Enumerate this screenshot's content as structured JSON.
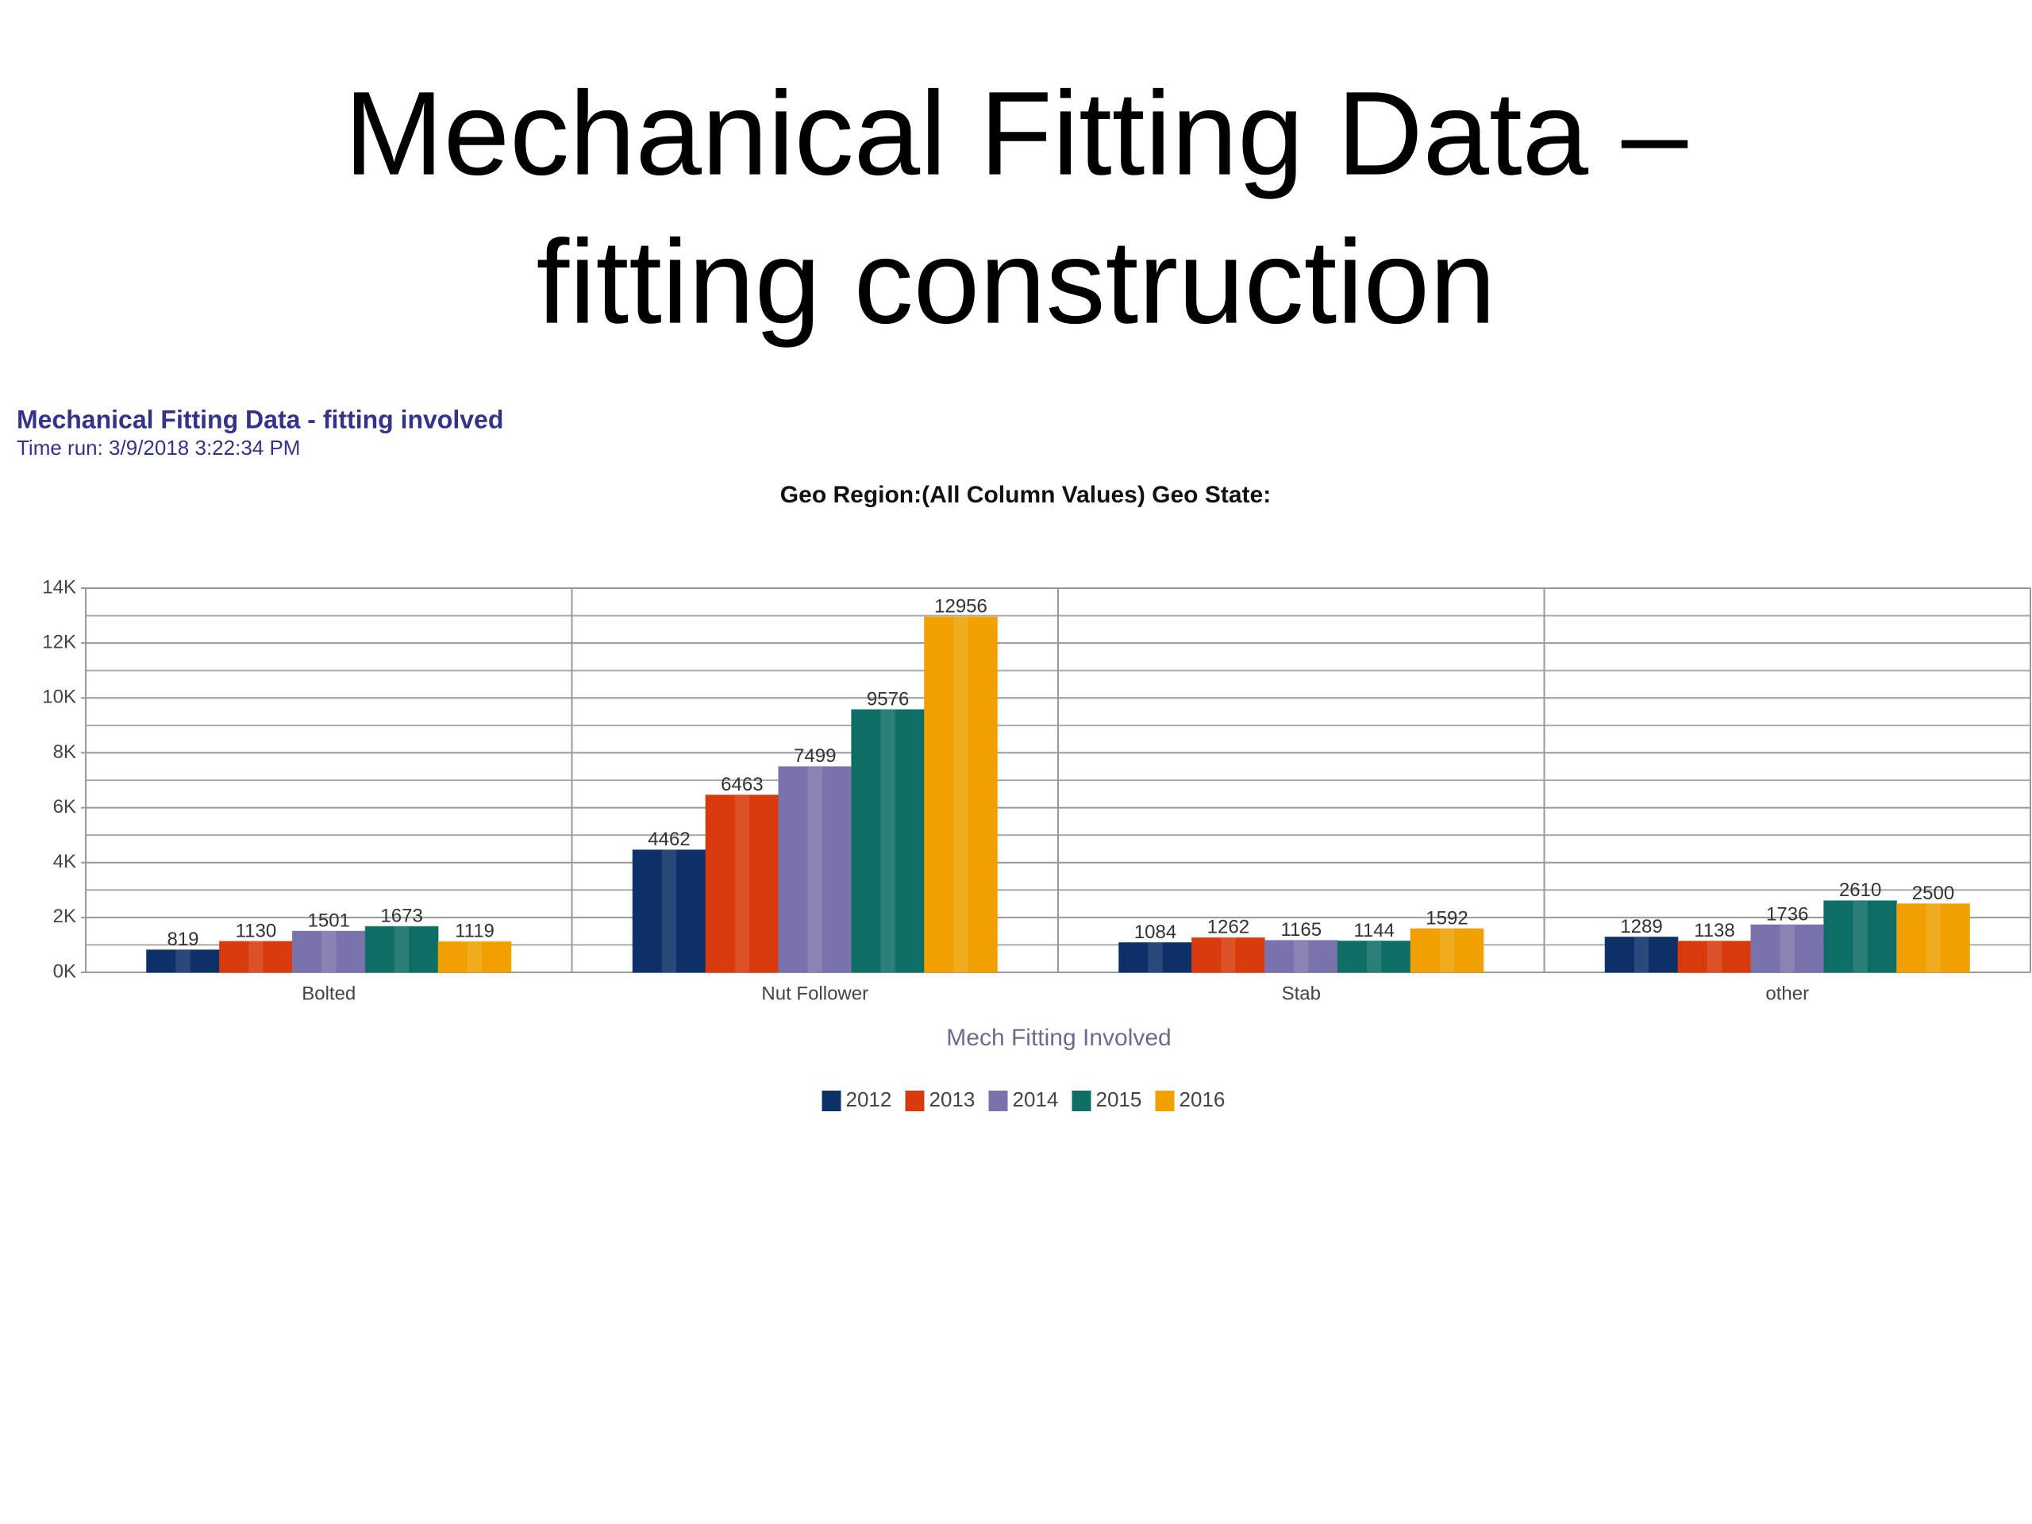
{
  "slide_title": [
    "Mechanical Fitting Data –",
    "fitting construction"
  ],
  "report_title": "Mechanical Fitting Data - fitting involved",
  "time_run": "Time  run: 3/9/2018 3:22:34 PM",
  "chart_data": {
    "type": "bar",
    "title": "Geo Region:(All Column Values) Geo State:",
    "x_label": "Mech Fitting Involved",
    "categories": [
      "Bolted",
      "Nut Follower",
      "Stab",
      "other"
    ],
    "series": [
      {
        "name": "2012",
        "color": "#0d3068",
        "values": [
          819,
          4462,
          1084,
          1289
        ]
      },
      {
        "name": "2013",
        "color": "#d93a0b",
        "values": [
          1130,
          6463,
          1262,
          1138
        ]
      },
      {
        "name": "2014",
        "color": "#7a72aa",
        "values": [
          1501,
          7499,
          1165,
          1736
        ]
      },
      {
        "name": "2015",
        "color": "#0e6e66",
        "values": [
          1673,
          9576,
          1144,
          2610
        ]
      },
      {
        "name": "2016",
        "color": "#f0a000",
        "values": [
          1119,
          12956,
          1592,
          2500
        ]
      }
    ],
    "ylim": [
      0,
      14000
    ],
    "yticks": [
      {
        "value": 0,
        "label": "0K"
      },
      {
        "value": 2000,
        "label": "2K"
      },
      {
        "value": 4000,
        "label": "4K"
      },
      {
        "value": 6000,
        "label": "6K"
      },
      {
        "value": 8000,
        "label": "8K"
      },
      {
        "value": 10000,
        "label": "10K"
      },
      {
        "value": 12000,
        "label": "12K"
      },
      {
        "value": 14000,
        "label": "14K"
      }
    ],
    "minor_yticks": [
      1000,
      3000,
      5000,
      7000,
      9000,
      11000,
      13000
    ],
    "grid": true,
    "legend": "bottom"
  }
}
